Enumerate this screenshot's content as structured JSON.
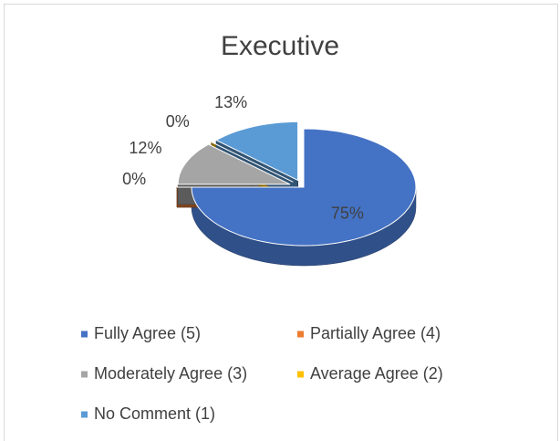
{
  "chart_data": {
    "type": "pie",
    "title": "Executive",
    "categories": [
      "Fully Agree (5)",
      "Partially Agree (4)",
      "Moderately Agree (3)",
      "Average Agree (2)",
      "No Comment (1)"
    ],
    "values": [
      75,
      0,
      12,
      0,
      13
    ],
    "value_labels": [
      "75%",
      "0%",
      "12%",
      "0%",
      "13%"
    ],
    "colors": [
      "#4472c4",
      "#ed7d31",
      "#a5a5a5",
      "#ffc000",
      "#5b9bd5"
    ],
    "legend": "bottom"
  }
}
